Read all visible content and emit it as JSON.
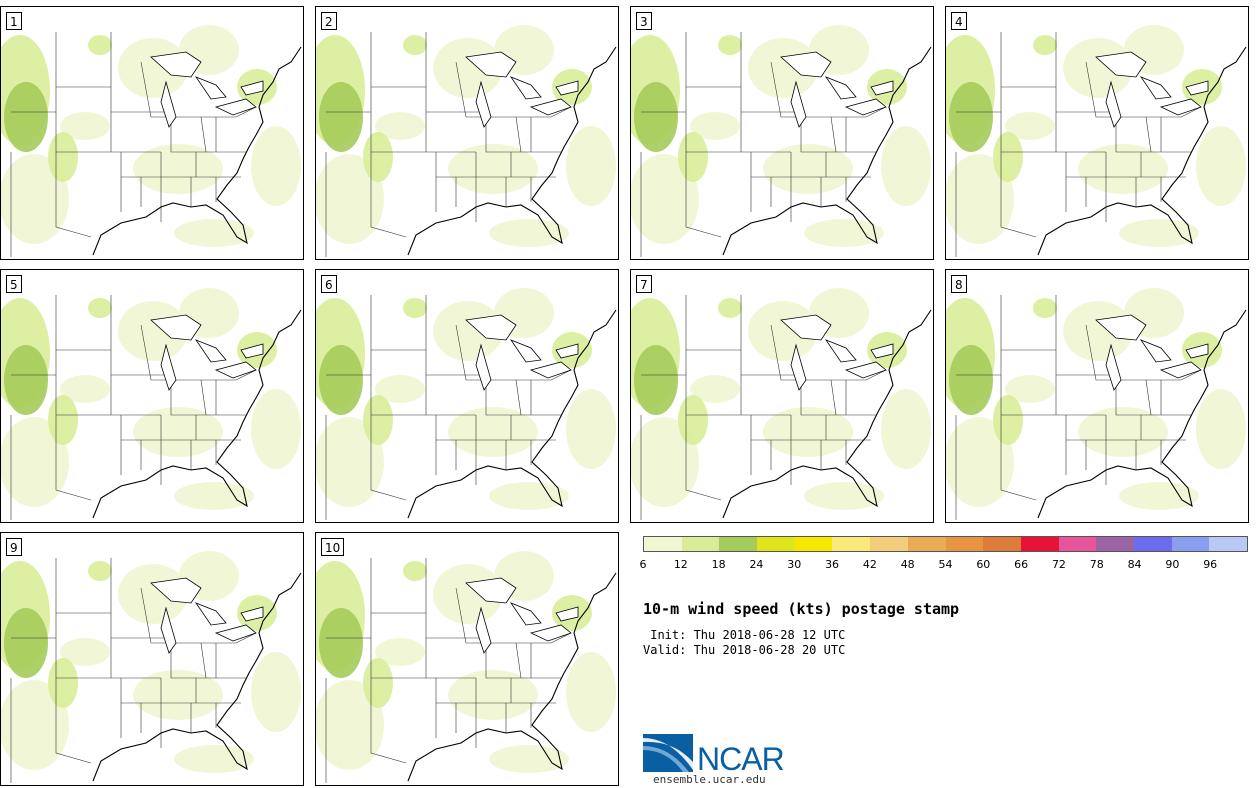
{
  "members": [
    {
      "label": "1"
    },
    {
      "label": "2"
    },
    {
      "label": "3"
    },
    {
      "label": "4"
    },
    {
      "label": "5"
    },
    {
      "label": "6"
    },
    {
      "label": "7"
    },
    {
      "label": "8"
    },
    {
      "label": "9"
    },
    {
      "label": "10"
    }
  ],
  "colorbar": {
    "colors": [
      "#f0f6d2",
      "#d9ed98",
      "#a5cb5a",
      "#dfe41c",
      "#f7e600",
      "#fde87c",
      "#f3cd7a",
      "#ebaa55",
      "#e79545",
      "#dd7b3a",
      "#e81235",
      "#e8549a",
      "#9c64a2",
      "#6b6dec",
      "#8b9ff0",
      "#b9c8f4"
    ],
    "tick_labels": [
      "6",
      "12",
      "18",
      "24",
      "30",
      "36",
      "42",
      "48",
      "54",
      "60",
      "66",
      "72",
      "78",
      "84",
      "90",
      "96"
    ]
  },
  "info": {
    "title": "10-m wind speed (kts) postage stamp",
    "init": " Init: Thu 2018-06-28 12 UTC",
    "valid": "Valid: Thu 2018-06-28 20 UTC"
  },
  "logo": {
    "name": "NCAR",
    "url": "ensemble.ucar.edu"
  }
}
